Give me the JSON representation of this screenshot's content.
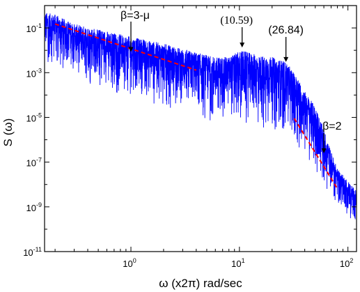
{
  "chart_data": {
    "type": "line",
    "title": "",
    "xlabel": "ω (x2π) rad/sec",
    "ylabel": "S (ω)",
    "x_scale": "log",
    "y_scale": "log",
    "xlim": [
      0.16,
      120
    ],
    "ylim": [
      1e-11,
      1
    ],
    "grid": false,
    "legend": "none",
    "x_ticks": [
      {
        "value": 1,
        "base": "10",
        "exp": "0"
      },
      {
        "value": 10,
        "base": "10",
        "exp": "1"
      },
      {
        "value": 100,
        "base": "10",
        "exp": "2"
      }
    ],
    "y_ticks": [
      {
        "value": 0.1,
        "base": "10",
        "exp": "-1"
      },
      {
        "value": 0.001,
        "base": "10",
        "exp": "-3"
      },
      {
        "value": 1e-05,
        "base": "10",
        "exp": "-5"
      },
      {
        "value": 1e-07,
        "base": "10",
        "exp": "-7"
      },
      {
        "value": 1e-09,
        "base": "10",
        "exp": "-9"
      },
      {
        "value": 1e-11,
        "base": "10",
        "exp": "-11"
      }
    ],
    "series": [
      {
        "color": "#0000ff",
        "envelope": {
          "x": [
            0.16,
            0.2,
            0.3,
            0.5,
            1,
            2,
            4,
            6,
            8,
            9,
            10.59,
            12,
            15,
            20,
            26.84,
            30,
            35,
            40,
            50,
            60,
            70,
            80,
            100,
            120
          ],
          "y_upper": [
            0.5,
            0.4,
            0.15,
            0.09,
            0.04,
            0.02,
            0.008,
            0.005,
            0.005,
            0.007,
            0.01,
            0.008,
            0.006,
            0.005,
            0.003,
            0.0015,
            0.0005,
            0.00015,
            3e-05,
            3e-06,
            3e-07,
            5e-08,
            1.5e-08,
            5e-09
          ],
          "y_lower": [
            0.002,
            0.002,
            0.0008,
            0.0002,
            8e-05,
            3e-05,
            1e-05,
            5e-06,
            5e-06,
            4e-06,
            3e-06,
            3e-06,
            3e-06,
            3e-06,
            2e-06,
            1e-06,
            5e-07,
            2e-07,
            5e-08,
            1e-08,
            3e-09,
            1e-09,
            3e-10,
            2e-10
          ]
        }
      }
    ],
    "fit_lines": [
      {
        "label": "β=3-μ",
        "color": "#ff0000",
        "x": [
          0.2,
          4
        ],
        "y": [
          0.15,
          0.0013
        ]
      },
      {
        "label": "β=2",
        "color": "#ff0000",
        "x": [
          32,
          80
        ],
        "y": [
          9e-06,
          6.5e-09
        ]
      }
    ],
    "annotations": [
      {
        "text": "β=3-μ",
        "x": 1,
        "y": 0.02
      },
      {
        "text": "(10.59)",
        "x": 10.59,
        "y": 0.01
      },
      {
        "text": "(26.84)",
        "x": 26.84,
        "y": 0.0035
      },
      {
        "text": "β=2",
        "x": 60,
        "y": 2.5e-07
      }
    ]
  }
}
